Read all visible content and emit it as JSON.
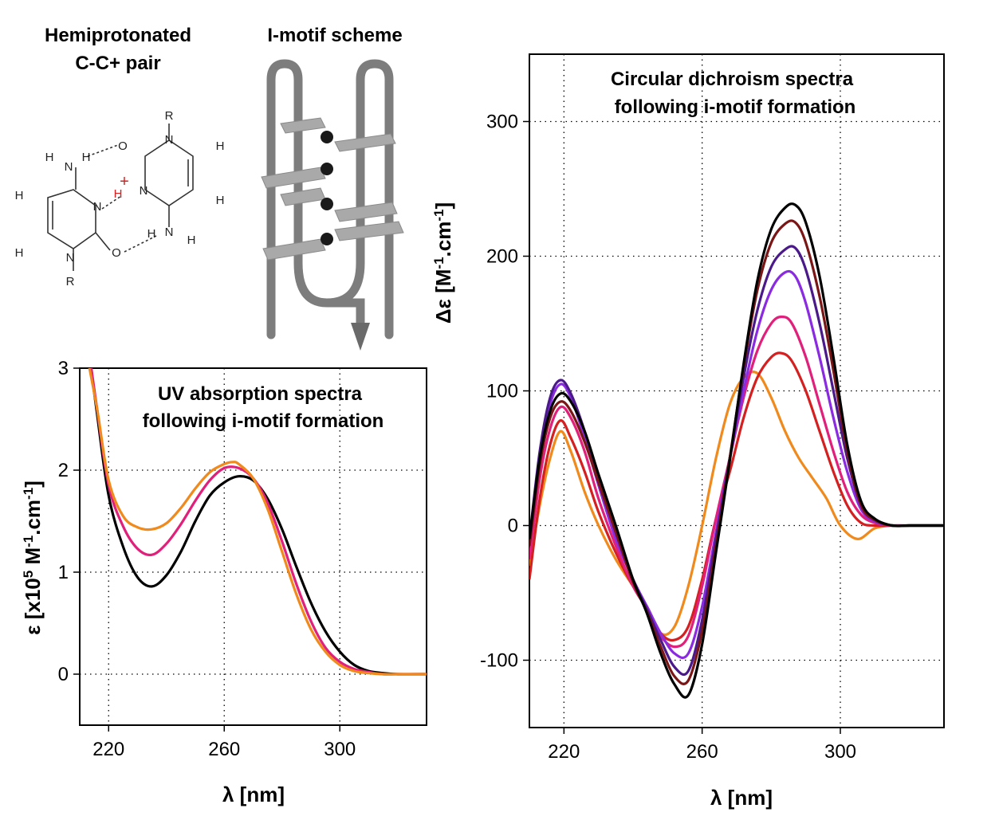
{
  "panels": {
    "pair_heading_line1": "Hemiprotonated",
    "pair_heading_line2": "C-C+ pair",
    "scheme_heading": "I-motif scheme"
  },
  "chemistry": {
    "atoms": {
      "r_top": "R",
      "n_top": "N",
      "h_top_right": "H",
      "h_right": "H",
      "o_top": "O",
      "n_mid": "N",
      "h_plus": "H",
      "plus": "+",
      "n_nh2_right": "N",
      "h_nh2_r1": "H",
      "h_nh2_r2": "H",
      "h_nh2_l1": "H",
      "n_nh2_left": "N",
      "h_nh2_l2": "H",
      "h_left_top": "H",
      "n_left": "N",
      "h_left_bottom": "H",
      "n_left_bottom": "N",
      "o_left": "O",
      "r_bottom": "R"
    }
  },
  "chart_data": [
    {
      "type": "line",
      "title": "UV absorption spectra\nfollowing i-motif formation",
      "title_line1": "UV absorption spectra",
      "title_line2": "following i-motif formation",
      "xlabel": "λ [nm]",
      "ylabel_parts": [
        "ε [x10",
        "5",
        " M",
        "-1",
        ".cm",
        "-1",
        "]"
      ],
      "xlim": [
        210,
        330
      ],
      "ylim": [
        -0.5,
        3
      ],
      "xticks": [
        220,
        260,
        300
      ],
      "yticks": [
        0,
        1,
        2,
        3
      ],
      "grid": true,
      "series": [
        {
          "color": "#000000",
          "x": [
            213,
            216,
            220,
            225,
            230,
            235,
            240,
            245,
            250,
            255,
            260,
            265,
            270,
            275,
            280,
            285,
            290,
            295,
            300,
            305,
            310,
            315,
            320,
            330
          ],
          "y": [
            3.2,
            2.55,
            1.75,
            1.25,
            0.95,
            0.86,
            0.97,
            1.2,
            1.5,
            1.75,
            1.88,
            1.94,
            1.9,
            1.72,
            1.42,
            1.05,
            0.7,
            0.42,
            0.22,
            0.09,
            0.03,
            0.01,
            0.0,
            0.0
          ]
        },
        {
          "color": "#e0207a",
          "x": [
            213,
            216,
            220,
            225,
            230,
            235,
            240,
            245,
            250,
            255,
            260,
            265,
            270,
            275,
            280,
            285,
            290,
            295,
            300,
            305,
            310,
            315,
            320,
            330
          ],
          "y": [
            3.2,
            2.6,
            1.85,
            1.45,
            1.23,
            1.17,
            1.28,
            1.47,
            1.7,
            1.9,
            2.02,
            2.02,
            1.92,
            1.68,
            1.3,
            0.88,
            0.52,
            0.26,
            0.12,
            0.05,
            0.02,
            0.0,
            0.0,
            0.0
          ]
        },
        {
          "color": "#f08a1c",
          "x": [
            212,
            216,
            220,
            225,
            230,
            235,
            240,
            245,
            250,
            255,
            260,
            263,
            265,
            270,
            275,
            280,
            285,
            290,
            295,
            300,
            305,
            310,
            315,
            320,
            330
          ],
          "y": [
            3.2,
            2.6,
            1.9,
            1.55,
            1.44,
            1.42,
            1.48,
            1.63,
            1.82,
            1.98,
            2.06,
            2.08,
            2.06,
            1.92,
            1.62,
            1.2,
            0.78,
            0.44,
            0.22,
            0.09,
            0.03,
            0.01,
            0.0,
            0.0,
            0.0
          ]
        }
      ]
    },
    {
      "type": "line",
      "title": "Circular dichroism spectra\nfollowing i-motif formation",
      "title_line1": "Circular dichroism spectra",
      "title_line2": "following i-motif formation",
      "xlabel": "λ [nm]",
      "ylabel_parts": [
        "Δε [M",
        "-1",
        ".cm",
        "-1",
        "]"
      ],
      "xlim": [
        210,
        330
      ],
      "ylim": [
        -150,
        350
      ],
      "xticks": [
        220,
        260,
        300
      ],
      "yticks": [
        -100,
        0,
        100,
        200,
        300
      ],
      "grid": true,
      "series": [
        {
          "color": "#f08a1c",
          "x": [
            210,
            213,
            216,
            219,
            222,
            226,
            230,
            235,
            240,
            244,
            248,
            252,
            256,
            260,
            264,
            268,
            272,
            276,
            280,
            284,
            288,
            292,
            296,
            300,
            305,
            310,
            315,
            320,
            330
          ],
          "y": [
            -30,
            15,
            50,
            70,
            55,
            25,
            0,
            -25,
            -45,
            -60,
            -80,
            -75,
            -45,
            0,
            50,
            90,
            110,
            113,
            95,
            70,
            50,
            35,
            20,
            0,
            -10,
            -2,
            0,
            0,
            0
          ]
        },
        {
          "color": "#d42020",
          "x": [
            210,
            213,
            216,
            219,
            222,
            226,
            230,
            235,
            240,
            244,
            248,
            252,
            256,
            260,
            264,
            268,
            272,
            276,
            280,
            283,
            286,
            290,
            294,
            298,
            302,
            306,
            310,
            315,
            320,
            330
          ],
          "y": [
            -40,
            20,
            60,
            78,
            65,
            40,
            10,
            -20,
            -45,
            -60,
            -80,
            -85,
            -75,
            -40,
            5,
            40,
            80,
            110,
            125,
            128,
            122,
            100,
            70,
            40,
            15,
            2,
            0,
            0,
            0,
            0
          ]
        },
        {
          "color": "#e0207a",
          "x": [
            210,
            213,
            216,
            219,
            222,
            226,
            230,
            235,
            240,
            244,
            248,
            252,
            256,
            260,
            264,
            268,
            272,
            276,
            280,
            283,
            286,
            290,
            294,
            298,
            302,
            306,
            310,
            315,
            320,
            330
          ],
          "y": [
            -25,
            35,
            72,
            88,
            80,
            55,
            20,
            -15,
            -45,
            -62,
            -82,
            -90,
            -82,
            -45,
            5,
            50,
            95,
            130,
            150,
            155,
            150,
            125,
            90,
            55,
            25,
            8,
            2,
            0,
            0,
            0
          ]
        },
        {
          "color": "#8a2be2",
          "x": [
            210,
            213,
            216,
            219,
            222,
            226,
            230,
            235,
            240,
            244,
            248,
            252,
            256,
            260,
            264,
            268,
            272,
            276,
            280,
            284,
            287,
            290,
            294,
            298,
            302,
            306,
            310,
            315,
            320,
            330
          ],
          "y": [
            -15,
            50,
            90,
            105,
            95,
            65,
            30,
            -10,
            -40,
            -60,
            -80,
            -95,
            -95,
            -60,
            -5,
            50,
            100,
            145,
            175,
            188,
            185,
            165,
            125,
            80,
            40,
            12,
            3,
            0,
            0,
            0
          ]
        },
        {
          "color": "#4b1a8a",
          "x": [
            210,
            213,
            216,
            219,
            222,
            226,
            230,
            235,
            240,
            244,
            248,
            252,
            256,
            260,
            264,
            268,
            272,
            276,
            280,
            284,
            287,
            290,
            294,
            298,
            302,
            306,
            310,
            315,
            320,
            330
          ],
          "y": [
            -10,
            55,
            95,
            108,
            98,
            70,
            35,
            -5,
            -40,
            -62,
            -85,
            -105,
            -108,
            -70,
            -10,
            50,
            110,
            160,
            192,
            205,
            206,
            190,
            150,
            100,
            50,
            15,
            4,
            0,
            0,
            0
          ]
        },
        {
          "color": "#7a1616",
          "x": [
            210,
            213,
            216,
            219,
            222,
            226,
            230,
            235,
            240,
            244,
            248,
            252,
            256,
            260,
            264,
            268,
            272,
            276,
            280,
            284,
            287,
            290,
            294,
            298,
            302,
            306,
            310,
            315,
            320,
            330
          ],
          "y": [
            -15,
            45,
            80,
            92,
            85,
            62,
            32,
            -5,
            -42,
            -64,
            -90,
            -112,
            -115,
            -78,
            -15,
            50,
            118,
            175,
            210,
            224,
            225,
            210,
            170,
            115,
            55,
            15,
            4,
            0,
            0,
            0
          ]
        },
        {
          "color": "#000000",
          "x": [
            210,
            213,
            216,
            219,
            222,
            226,
            230,
            235,
            240,
            244,
            248,
            252,
            256,
            260,
            264,
            268,
            272,
            276,
            280,
            284,
            287,
            290,
            294,
            298,
            302,
            306,
            310,
            315,
            320,
            330
          ],
          "y": [
            -10,
            50,
            85,
            98,
            92,
            70,
            38,
            0,
            -40,
            -65,
            -95,
            -118,
            -126,
            -88,
            -20,
            48,
            120,
            182,
            220,
            236,
            238,
            225,
            185,
            125,
            60,
            18,
            5,
            0,
            0,
            0
          ]
        }
      ]
    }
  ]
}
